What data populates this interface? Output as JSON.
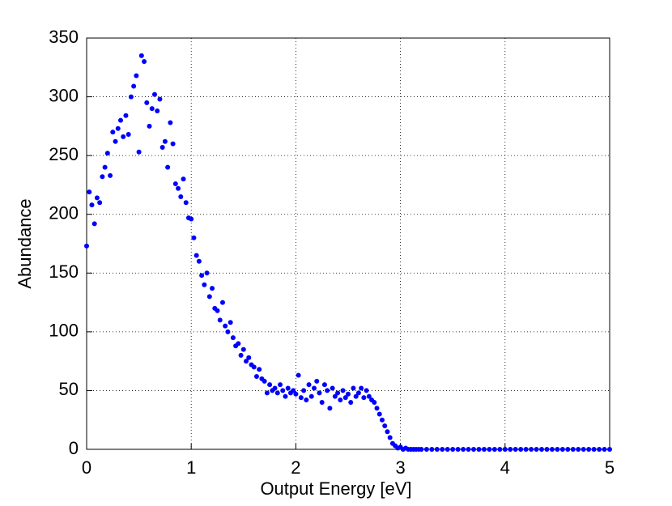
{
  "chart_data": {
    "type": "scatter",
    "xlabel": "Output Energy [eV]",
    "ylabel": "Abundance",
    "x": [
      0,
      0.025,
      0.05,
      0.075,
      0.1,
      0.125,
      0.15,
      0.175,
      0.2,
      0.225,
      0.25,
      0.275,
      0.3,
      0.325,
      0.35,
      0.375,
      0.4,
      0.425,
      0.45,
      0.475,
      0.5,
      0.525,
      0.55,
      0.575,
      0.6,
      0.625,
      0.65,
      0.675,
      0.7,
      0.725,
      0.75,
      0.775,
      0.8,
      0.825,
      0.85,
      0.875,
      0.9,
      0.925,
      0.95,
      0.975,
      1,
      1.025,
      1.05,
      1.075,
      1.1,
      1.125,
      1.15,
      1.175,
      1.2,
      1.225,
      1.25,
      1.275,
      1.3,
      1.325,
      1.35,
      1.375,
      1.4,
      1.425,
      1.45,
      1.475,
      1.5,
      1.525,
      1.55,
      1.575,
      1.6,
      1.625,
      1.65,
      1.675,
      1.7,
      1.725,
      1.75,
      1.775,
      1.8,
      1.825,
      1.85,
      1.875,
      1.9,
      1.925,
      1.95,
      1.975,
      2,
      2.025,
      2.05,
      2.075,
      2.1,
      2.125,
      2.15,
      2.175,
      2.2,
      2.225,
      2.25,
      2.275,
      2.3,
      2.325,
      2.35,
      2.375,
      2.4,
      2.425,
      2.45,
      2.475,
      2.5,
      2.525,
      2.55,
      2.575,
      2.6,
      2.625,
      2.65,
      2.675,
      2.7,
      2.725,
      2.75,
      2.775,
      2.8,
      2.825,
      2.85,
      2.875,
      2.9,
      2.925,
      2.95,
      2.975,
      3,
      3.025,
      3.05,
      3.075,
      3.1,
      3.125,
      3.15,
      3.175,
      3.2,
      3.25,
      3.3,
      3.35,
      3.4,
      3.45,
      3.5,
      3.55,
      3.6,
      3.65,
      3.7,
      3.75,
      3.8,
      3.85,
      3.9,
      3.95,
      4,
      4.05,
      4.1,
      4.15,
      4.2,
      4.25,
      4.3,
      4.35,
      4.4,
      4.45,
      4.5,
      4.55,
      4.6,
      4.65,
      4.7,
      4.75,
      4.8,
      4.85,
      4.9,
      4.95,
      5
    ],
    "series": [
      {
        "color": "#0000ff",
        "values": [
          173,
          219,
          208,
          192,
          214,
          210,
          232,
          240,
          252,
          233,
          270,
          262,
          273,
          280,
          266,
          284,
          268,
          300,
          309,
          318,
          253,
          335,
          330,
          295,
          275,
          290,
          302,
          288,
          298,
          257,
          262,
          240,
          278,
          260,
          226,
          222,
          215,
          230,
          210,
          197,
          196,
          180,
          165,
          160,
          148,
          140,
          150,
          130,
          137,
          120,
          118,
          110,
          125,
          105,
          100,
          108,
          95,
          88,
          90,
          80,
          85,
          75,
          78,
          72,
          70,
          62,
          68,
          60,
          58,
          48,
          55,
          50,
          52,
          48,
          55,
          50,
          45,
          52,
          48,
          50,
          47,
          63,
          44,
          50,
          42,
          55,
          45,
          52,
          58,
          48,
          40,
          55,
          50,
          35,
          52,
          45,
          48,
          42,
          50,
          44,
          47,
          40,
          52,
          45,
          48,
          52,
          44,
          50,
          45,
          42,
          40,
          35,
          30,
          25,
          20,
          15,
          10,
          5,
          3,
          1,
          2,
          0,
          1,
          0,
          0,
          0,
          0,
          0,
          0,
          0,
          0,
          0,
          0,
          0,
          0,
          0,
          0,
          0,
          0,
          0,
          0,
          0,
          0,
          0,
          0,
          0,
          0,
          0,
          0,
          0,
          0,
          0,
          0,
          0,
          0,
          0,
          0,
          0,
          0,
          0,
          0,
          0,
          0,
          0,
          0
        ]
      }
    ],
    "xlim": [
      0,
      5
    ],
    "xticks": [
      0,
      1,
      2,
      3,
      4,
      5
    ],
    "ylim": [
      0,
      350
    ],
    "yticks": [
      0,
      50,
      100,
      150,
      200,
      250,
      300,
      350
    ],
    "grid": true
  }
}
